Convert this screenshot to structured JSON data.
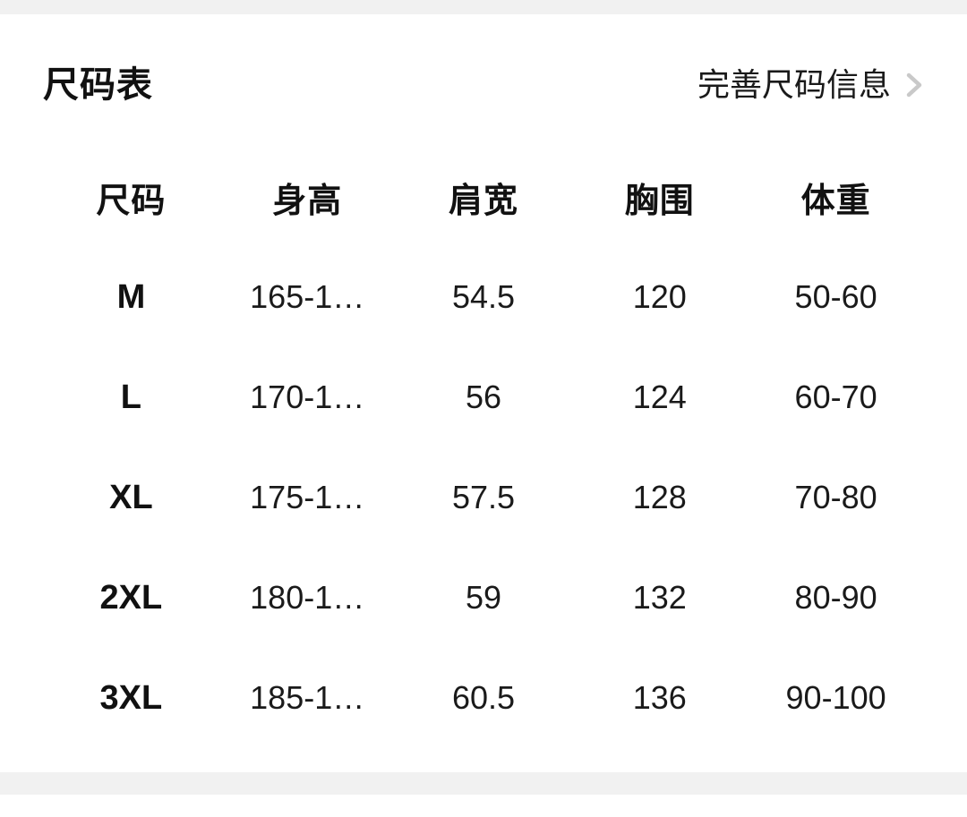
{
  "header": {
    "title": "尺码表",
    "action_label": "完善尺码信息",
    "action_icon": "chevron-right-icon"
  },
  "size_table": {
    "columns": [
      "尺码",
      "身高",
      "肩宽",
      "胸围",
      "体重"
    ],
    "rows": [
      {
        "size": "M",
        "values": [
          "165-1…",
          "54.5",
          "120",
          "50-60"
        ]
      },
      {
        "size": "L",
        "values": [
          "170-1…",
          "56",
          "124",
          "60-70"
        ]
      },
      {
        "size": "XL",
        "values": [
          "175-1…",
          "57.5",
          "128",
          "70-80"
        ]
      },
      {
        "size": "2XL",
        "values": [
          "180-1…",
          "59",
          "132",
          "80-90"
        ]
      },
      {
        "size": "3XL",
        "values": [
          "185-1…",
          "60.5",
          "136",
          "90-100"
        ]
      }
    ]
  },
  "colors": {
    "background": "#ffffff",
    "divider": "#f1f1f1",
    "strong_text": "#111111",
    "text": "#1a1a1a",
    "chevron": "#c9c9c9"
  }
}
